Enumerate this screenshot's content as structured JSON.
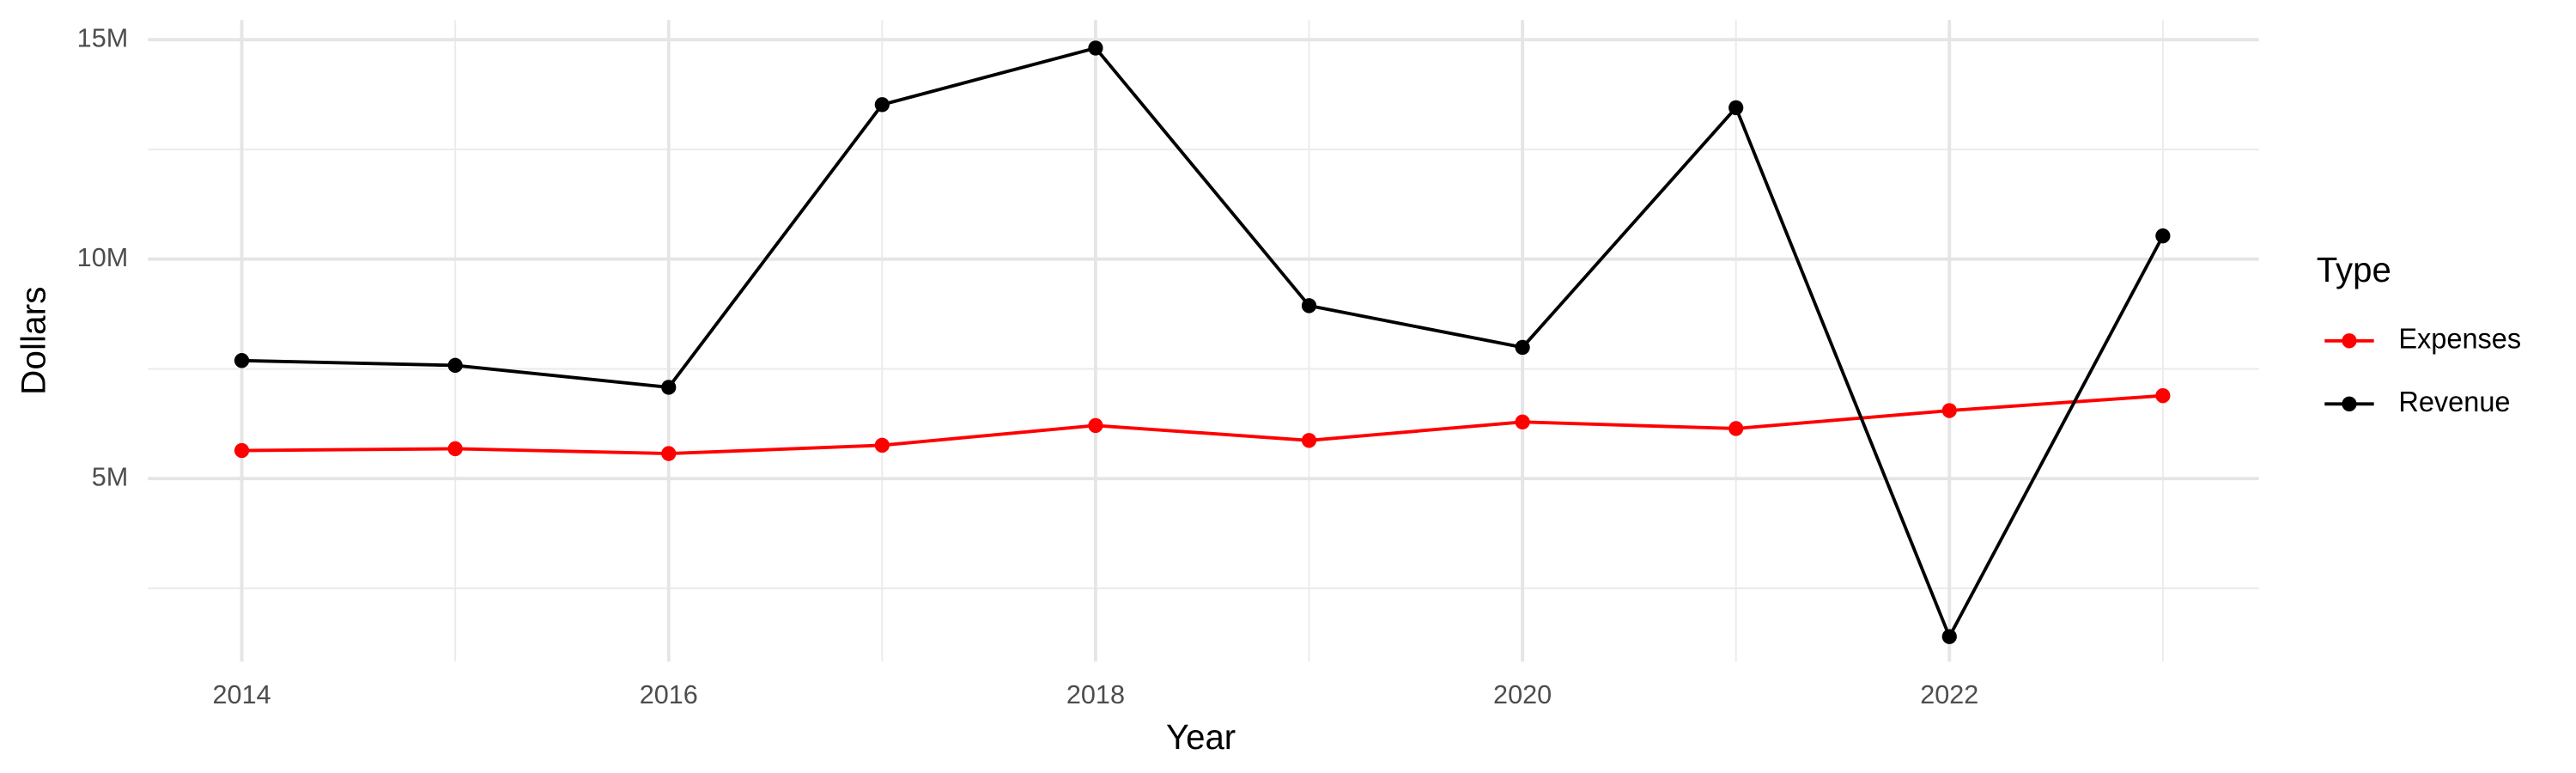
{
  "chart_data": {
    "type": "line",
    "x_label": "Year",
    "y_label": "Dollars",
    "legend_title": "Type",
    "legend_position": "right",
    "x": [
      2014,
      2015,
      2016,
      2017,
      2018,
      2019,
      2020,
      2021,
      2022,
      2023
    ],
    "series": [
      {
        "name": "Expenses",
        "color": "#ff0000",
        "values": [
          5640000,
          5680000,
          5570000,
          5760000,
          6210000,
          5870000,
          6290000,
          6140000,
          6550000,
          6890000
        ]
      },
      {
        "name": "Revenue",
        "color": "#000000",
        "values": [
          7690000,
          7580000,
          7080000,
          13520000,
          14810000,
          8940000,
          7990000,
          13450000,
          1400000,
          10530000
        ]
      }
    ],
    "xlim": [
      2013.56,
      2023.45
    ],
    "xticks": [
      2014,
      2016,
      2018,
      2020,
      2022
    ],
    "x_minor_ticks": [
      2015,
      2017,
      2019,
      2021,
      2023
    ],
    "ylim": [
      830000,
      15450000
    ],
    "yticks": [
      {
        "value": 5000000,
        "label": "5M"
      },
      {
        "value": 10000000,
        "label": "10M"
      },
      {
        "value": 15000000,
        "label": "15M"
      }
    ],
    "y_minor_ticks": [
      2500000,
      7500000,
      12500000
    ],
    "grid": true
  }
}
